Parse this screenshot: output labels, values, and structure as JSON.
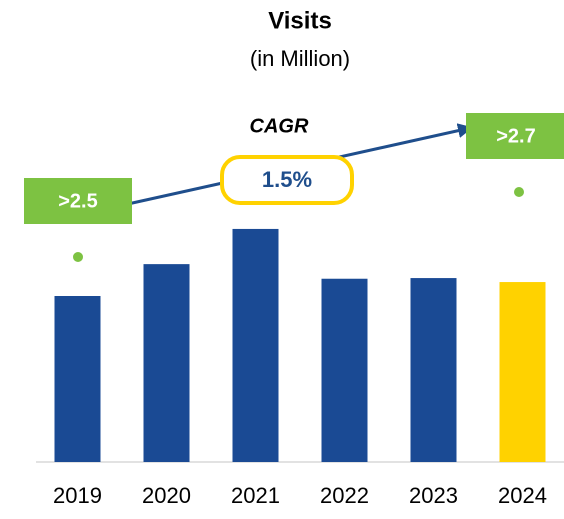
{
  "chart_data": {
    "type": "bar",
    "title": "Visits",
    "subtitle": "(in Million)",
    "categories": [
      "2019",
      "2020",
      "2021",
      "2022",
      "2023",
      "2024"
    ],
    "values": [
      2.5,
      2.98,
      3.51,
      2.76,
      2.77,
      2.71
    ],
    "colors": [
      "#1a4a94",
      "#1a4a94",
      "#1a4a94",
      "#1a4a94",
      "#1a4a94",
      "#ffd200"
    ],
    "annotations": {
      "cagr_label": "CAGR",
      "cagr_value": "1.5%",
      "start_label": ">2.5",
      "end_label": ">2.7"
    }
  }
}
